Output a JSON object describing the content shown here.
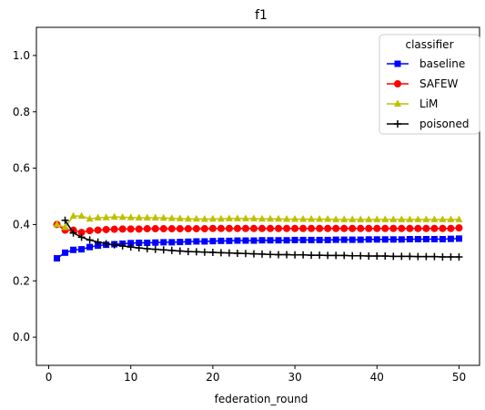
{
  "chart_data": {
    "type": "line",
    "title": "f1",
    "xlabel": "federation_round",
    "ylabel": "",
    "xlim": [
      -1.5,
      52.5
    ],
    "ylim": [
      -0.1,
      1.1
    ],
    "xticks": [
      0,
      10,
      20,
      30,
      40,
      50
    ],
    "yticks": [
      0.0,
      0.2,
      0.4,
      0.6,
      0.8,
      1.0
    ],
    "xtick_labels": [
      "0",
      "10",
      "20",
      "30",
      "40",
      "50"
    ],
    "ytick_labels": [
      "0.0",
      "0.2",
      "0.4",
      "0.6",
      "0.8",
      "1.0"
    ],
    "grid": false,
    "legend": {
      "title": "classifier",
      "placement": "top-right"
    },
    "x": [
      1,
      2,
      3,
      4,
      5,
      6,
      7,
      8,
      9,
      10,
      11,
      12,
      13,
      14,
      15,
      16,
      17,
      18,
      19,
      20,
      21,
      22,
      23,
      24,
      25,
      26,
      27,
      28,
      29,
      30,
      31,
      32,
      33,
      34,
      35,
      36,
      37,
      38,
      39,
      40,
      41,
      42,
      43,
      44,
      45,
      46,
      47,
      48,
      49,
      50
    ],
    "series": [
      {
        "name": "baseline",
        "color": "#0000ff",
        "marker": "square",
        "values": [
          0.28,
          0.3,
          0.31,
          0.312,
          0.32,
          0.325,
          0.328,
          0.33,
          0.332,
          0.334,
          0.335,
          0.335,
          0.336,
          0.337,
          0.337,
          0.338,
          0.339,
          0.34,
          0.34,
          0.341,
          0.342,
          0.342,
          0.343,
          0.343,
          0.343,
          0.344,
          0.344,
          0.344,
          0.344,
          0.345,
          0.345,
          0.345,
          0.345,
          0.345,
          0.346,
          0.346,
          0.346,
          0.346,
          0.347,
          0.347,
          0.347,
          0.347,
          0.347,
          0.348,
          0.348,
          0.348,
          0.348,
          0.348,
          0.349,
          0.35
        ]
      },
      {
        "name": "SAFEW",
        "color": "#ff0000",
        "marker": "circle",
        "values": [
          0.4,
          0.38,
          0.38,
          0.372,
          0.378,
          0.38,
          0.382,
          0.383,
          0.384,
          0.384,
          0.384,
          0.385,
          0.385,
          0.385,
          0.385,
          0.385,
          0.385,
          0.385,
          0.385,
          0.386,
          0.386,
          0.386,
          0.386,
          0.386,
          0.386,
          0.386,
          0.386,
          0.386,
          0.386,
          0.386,
          0.386,
          0.386,
          0.386,
          0.386,
          0.386,
          0.386,
          0.386,
          0.386,
          0.386,
          0.386,
          0.386,
          0.386,
          0.386,
          0.386,
          0.386,
          0.386,
          0.386,
          0.386,
          0.386,
          0.388
        ]
      },
      {
        "name": "LiM",
        "color": "#bfbf00",
        "marker": "triangle",
        "values": [
          0.4,
          0.39,
          0.43,
          0.43,
          0.42,
          0.424,
          0.425,
          0.427,
          0.426,
          0.425,
          0.424,
          0.424,
          0.424,
          0.423,
          0.422,
          0.421,
          0.42,
          0.42,
          0.419,
          0.42,
          0.42,
          0.421,
          0.421,
          0.421,
          0.421,
          0.42,
          0.42,
          0.42,
          0.419,
          0.419,
          0.419,
          0.419,
          0.419,
          0.419,
          0.418,
          0.418,
          0.418,
          0.418,
          0.418,
          0.418,
          0.418,
          0.418,
          0.418,
          0.418,
          0.418,
          0.418,
          0.418,
          0.418,
          0.418,
          0.418
        ]
      },
      {
        "name": "poisoned",
        "color": "#000000",
        "marker": "plus",
        "values": [
          null,
          0.415,
          0.37,
          0.355,
          0.345,
          0.338,
          0.332,
          0.328,
          0.324,
          0.32,
          0.317,
          0.314,
          0.312,
          0.31,
          0.308,
          0.306,
          0.304,
          0.303,
          0.302,
          0.301,
          0.3,
          0.299,
          0.298,
          0.297,
          0.296,
          0.295,
          0.294,
          0.293,
          0.293,
          0.292,
          0.292,
          0.291,
          0.291,
          0.29,
          0.29,
          0.29,
          0.289,
          0.289,
          0.288,
          0.288,
          0.288,
          0.287,
          0.287,
          0.287,
          0.286,
          0.286,
          0.286,
          0.285,
          0.285,
          0.285
        ]
      }
    ]
  }
}
